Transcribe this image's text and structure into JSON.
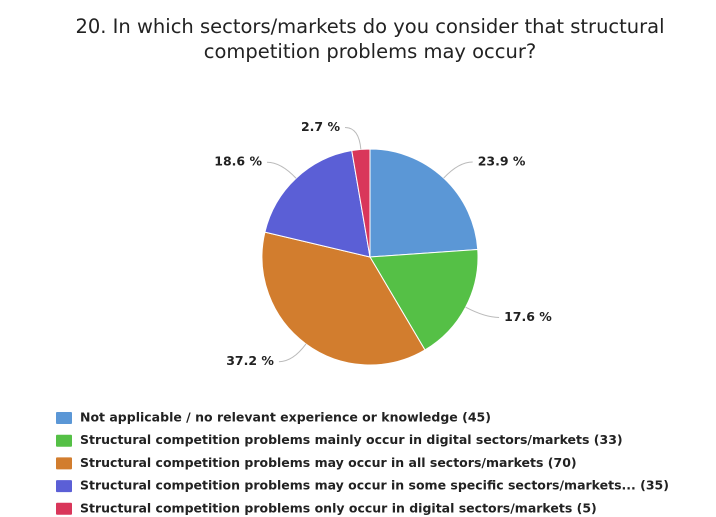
{
  "chart_data": {
    "type": "pie",
    "title": "20. In which sectors/markets do you consider that structural competition problems may occur?",
    "categories": [
      "Not applicable / no relevant experience or knowledge (45)",
      "Structural competition problems mainly occur in digital sectors/markets (33)",
      "Structural competition problems may occur in all sectors/markets (70)",
      "Structural competition problems may occur in some specific sectors/markets... (35)",
      "Structural competition problems only occur in digital sectors/markets (5)"
    ],
    "values": [
      23.9,
      17.6,
      37.2,
      18.6,
      2.7
    ],
    "value_labels": [
      "23.9 %",
      "17.6 %",
      "37.2 %",
      "18.6 %",
      "2.7 %"
    ],
    "colors": [
      "#5b97d6",
      "#55c046",
      "#d27d2e",
      "#5b5fd6",
      "#d9365a"
    ],
    "legend": "bottom-left"
  }
}
